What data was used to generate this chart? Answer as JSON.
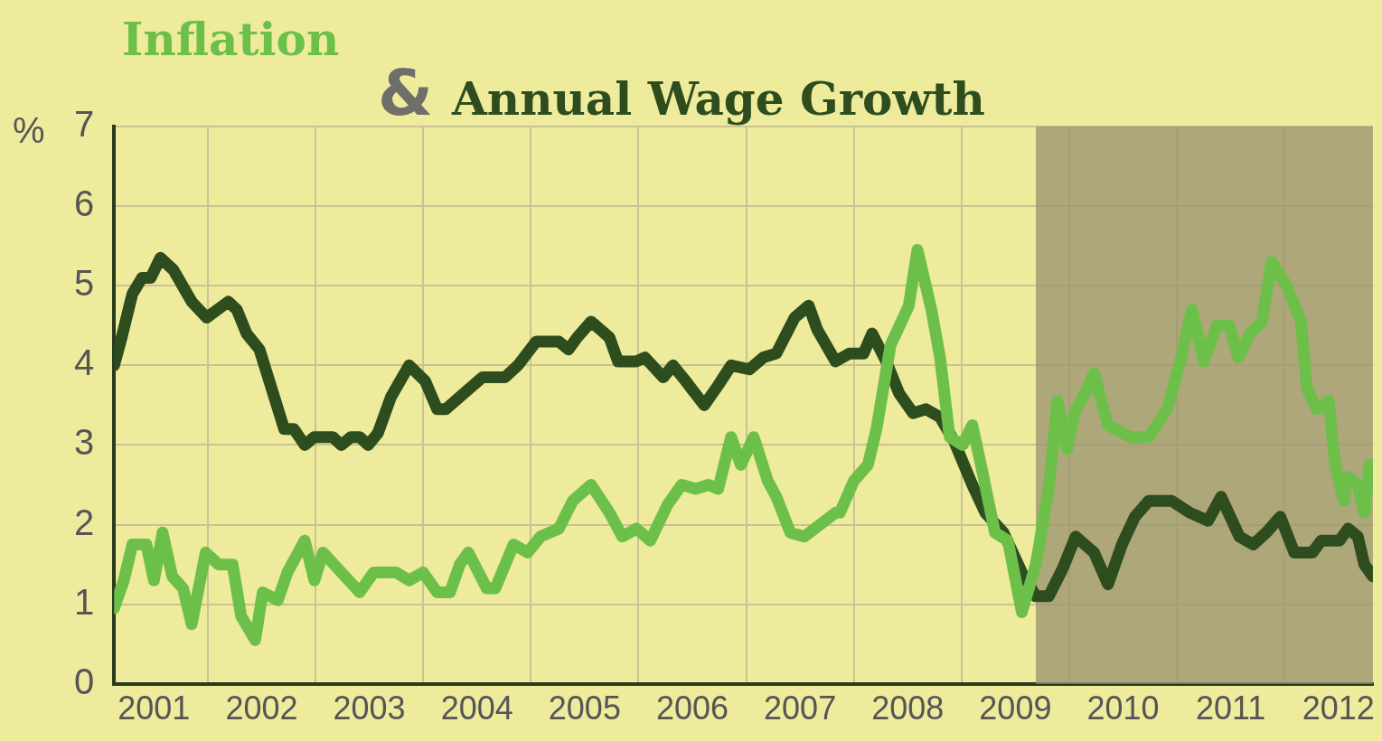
{
  "chart_data": {
    "type": "line",
    "title": "&",
    "ylabel": "%",
    "xlim": [
      2001.13,
      2012.82
    ],
    "xticks": [
      {
        "value": 2001.5,
        "label": "2001"
      },
      {
        "value": 2002,
        "label": null
      },
      {
        "value": 2002.5,
        "label": "2002"
      },
      {
        "value": 2003,
        "label": null
      },
      {
        "value": 2003.5,
        "label": "2003"
      },
      {
        "value": 2004,
        "label": null
      },
      {
        "value": 2004.5,
        "label": "2004"
      },
      {
        "value": 2005,
        "label": null
      },
      {
        "value": 2005.5,
        "label": "2005"
      },
      {
        "value": 2006,
        "label": null
      },
      {
        "value": 2006.5,
        "label": "2006"
      },
      {
        "value": 2007,
        "label": null
      },
      {
        "value": 2007.5,
        "label": "2007"
      },
      {
        "value": 2008,
        "label": null
      },
      {
        "value": 2008.5,
        "label": "2008"
      },
      {
        "value": 2009,
        "label": null
      },
      {
        "value": 2009.5,
        "label": "2009"
      },
      {
        "value": 2010,
        "label": null
      },
      {
        "value": 2010.5,
        "label": "2010"
      },
      {
        "value": 2011,
        "label": null
      },
      {
        "value": 2011.5,
        "label": "2011"
      },
      {
        "value": 2012,
        "label": null
      },
      {
        "value": 2012.5,
        "label": "2012"
      }
    ],
    "ylim": [
      0,
      7
    ],
    "yticks": [
      0,
      1,
      2,
      3,
      4,
      5,
      6,
      7
    ],
    "grid": true,
    "legend": false,
    "marker": "none",
    "line_style": "solid",
    "bands": [
      {
        "axis": "x",
        "from": 2009.69,
        "to": 2012.82,
        "color": "#9c9670"
      }
    ],
    "series": [
      {
        "name": "Inflation",
        "color": "#6cc04a",
        "x": [
          2001.13,
          2001.22,
          2001.3,
          2001.43,
          2001.5,
          2001.58,
          2001.67,
          2001.77,
          2001.85,
          2001.98,
          2002.1,
          2002.23,
          2002.31,
          2002.44,
          2002.51,
          2002.65,
          2002.74,
          2002.9,
          2002.99,
          2003.07,
          2003.24,
          2003.41,
          2003.54,
          2003.75,
          2003.87,
          2004,
          2004.13,
          2004.25,
          2004.34,
          2004.42,
          2004.59,
          2004.67,
          2004.84,
          2004.97,
          2005.09,
          2005.26,
          2005.39,
          2005.56,
          2005.73,
          2005.85,
          2005.98,
          2006.11,
          2006.27,
          2006.4,
          2006.53,
          2006.65,
          2006.74,
          2006.86,
          2006.95,
          2007.07,
          2007.2,
          2007.28,
          2007.41,
          2007.54,
          2007.83,
          2007.87,
          2008,
          2008.13,
          2008.21,
          2008.34,
          2008.51,
          2008.59,
          2008.72,
          2008.8,
          2008.89,
          2009.01,
          2009.1,
          2009.18,
          2009.31,
          2009.43,
          2009.56,
          2009.69,
          2009.81,
          2009.89,
          2009.98,
          2010.06,
          2010.15,
          2010.23,
          2010.36,
          2010.57,
          2010.74,
          2010.91,
          2011.04,
          2011.14,
          2011.25,
          2011.37,
          2011.49,
          2011.57,
          2011.68,
          2011.79,
          2011.88,
          2012.02,
          2012.15,
          2012.21,
          2012.3,
          2012.41,
          2012.47,
          2012.55,
          2012.59,
          2012.68,
          2012.74,
          2012.79,
          2012.82
        ],
        "values": [
          0.95,
          1.3,
          1.75,
          1.75,
          1.3,
          1.9,
          1.35,
          1.2,
          0.75,
          1.65,
          1.5,
          1.5,
          0.85,
          0.55,
          1.15,
          1.05,
          1.4,
          1.8,
          1.3,
          1.65,
          1.4,
          1.15,
          1.4,
          1.4,
          1.3,
          1.4,
          1.15,
          1.15,
          1.5,
          1.65,
          1.2,
          1.2,
          1.75,
          1.65,
          1.85,
          1.95,
          2.3,
          2.5,
          2.15,
          1.85,
          1.95,
          1.8,
          2.25,
          2.5,
          2.45,
          2.5,
          2.45,
          3.1,
          2.75,
          3.1,
          2.55,
          2.35,
          1.9,
          1.85,
          2.15,
          2.15,
          2.55,
          2.75,
          3.2,
          4.25,
          4.75,
          5.45,
          4.7,
          4.1,
          3.1,
          3.0,
          3.25,
          2.75,
          1.9,
          1.8,
          0.9,
          1.5,
          2.45,
          3.55,
          2.95,
          3.45,
          3.65,
          3.9,
          3.25,
          3.1,
          3.1,
          3.45,
          4.1,
          4.7,
          4.05,
          4.5,
          4.5,
          4.1,
          4.4,
          4.55,
          5.3,
          5.0,
          4.55,
          3.7,
          3.45,
          3.55,
          2.75,
          2.3,
          2.6,
          2.5,
          2.15,
          2.75,
          2.75
        ]
      },
      {
        "name": "Annual Wage Growth",
        "color": "#2e4d1e",
        "x": [
          2001.13,
          2001.2,
          2001.3,
          2001.39,
          2001.47,
          2001.56,
          2001.68,
          2001.85,
          2001.99,
          2002.19,
          2002.27,
          2002.36,
          2002.48,
          2002.71,
          2002.8,
          2002.9,
          2002.99,
          2003.16,
          2003.24,
          2003.33,
          2003.41,
          2003.49,
          2003.58,
          2003.7,
          2003.87,
          2004.02,
          2004.13,
          2004.21,
          2004.38,
          2004.55,
          2004.76,
          2004.88,
          2005.05,
          2005.26,
          2005.35,
          2005.43,
          2005.56,
          2005.73,
          2005.81,
          2005.98,
          2006.06,
          2006.23,
          2006.32,
          2006.44,
          2006.61,
          2006.74,
          2006.86,
          2007.03,
          2007.16,
          2007.28,
          2007.45,
          2007.58,
          2007.66,
          2007.83,
          2007.96,
          2008.09,
          2008.17,
          2008.3,
          2008.42,
          2008.55,
          2008.67,
          2008.8,
          2008.93,
          2009.1,
          2009.22,
          2009.39,
          2009.56,
          2009.69,
          2009.81,
          2009.94,
          2010.06,
          2010.23,
          2010.36,
          2010.49,
          2010.61,
          2010.74,
          2010.95,
          2011.12,
          2011.29,
          2011.41,
          2011.58,
          2011.71,
          2011.83,
          2011.96,
          2012.09,
          2012.26,
          2012.34,
          2012.51,
          2012.59,
          2012.68,
          2012.74,
          2012.82
        ],
        "values": [
          4.0,
          4.35,
          4.9,
          5.1,
          5.1,
          5.35,
          5.2,
          4.8,
          4.6,
          4.8,
          4.7,
          4.4,
          4.2,
          3.2,
          3.2,
          3.0,
          3.1,
          3.1,
          3.0,
          3.1,
          3.1,
          3.0,
          3.15,
          3.6,
          4.0,
          3.8,
          3.45,
          3.45,
          3.65,
          3.85,
          3.85,
          4.0,
          4.3,
          4.3,
          4.2,
          4.35,
          4.55,
          4.35,
          4.05,
          4.05,
          4.1,
          3.85,
          4.0,
          3.8,
          3.5,
          3.75,
          4.0,
          3.95,
          4.1,
          4.15,
          4.6,
          4.75,
          4.45,
          4.05,
          4.15,
          4.15,
          4.4,
          4.05,
          3.65,
          3.4,
          3.45,
          3.35,
          3.05,
          2.5,
          2.15,
          1.9,
          1.4,
          1.1,
          1.1,
          1.45,
          1.85,
          1.65,
          1.25,
          1.75,
          2.1,
          2.3,
          2.3,
          2.15,
          2.05,
          2.35,
          1.85,
          1.75,
          1.9,
          2.1,
          1.65,
          1.65,
          1.8,
          1.8,
          1.95,
          1.85,
          1.5,
          1.35
        ]
      }
    ]
  }
}
